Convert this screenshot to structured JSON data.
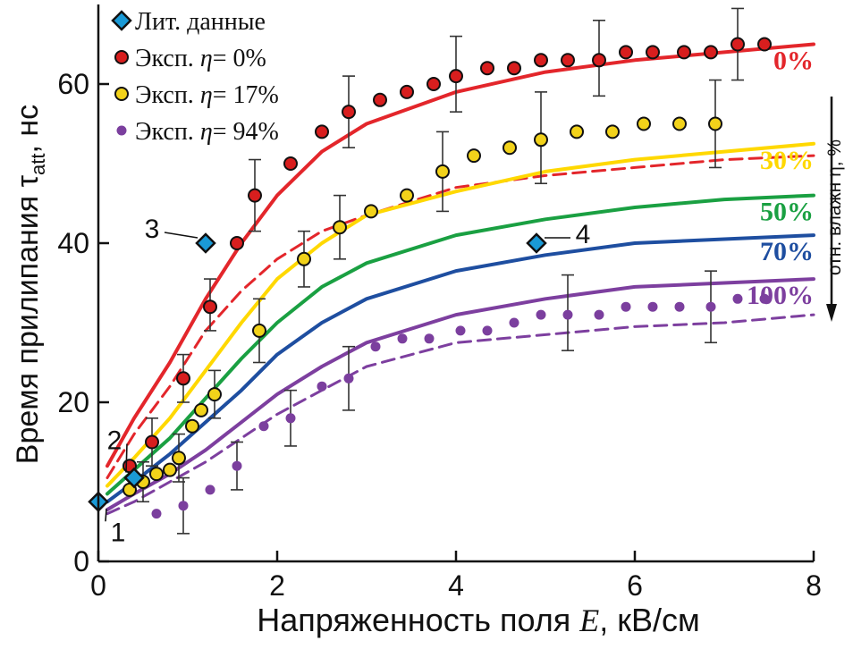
{
  "chart_data": {
    "type": "line",
    "xlabel_prefix": "Напряженность поля ",
    "xlabel_var": "E",
    "xlabel_suffix": ", кВ/см",
    "ylabel_prefix": "Время прилипания τ",
    "ylabel_sub": "att",
    "ylabel_suffix": ", нс",
    "xlim": [
      0,
      8
    ],
    "ylim": [
      0,
      70
    ],
    "x_ticks": [
      0,
      2,
      4,
      6,
      8
    ],
    "x_tick_labels": [
      "0",
      "2",
      "4",
      "6",
      "8"
    ],
    "y_ticks": [
      0,
      20,
      40,
      60
    ],
    "y_tick_labels": [
      "0",
      "20",
      "40",
      "60"
    ],
    "right_axis_label": "отн. влажн η, %",
    "legend": [
      {
        "text_prefix": "Лит. данные",
        "var": "",
        "text_suffix": "",
        "marker": "diamond",
        "color": "#1a9ad6"
      },
      {
        "text_prefix": "Эксп. ",
        "var": "η",
        "text_suffix": "= 0%",
        "marker": "circle",
        "color": "#d81e1e"
      },
      {
        "text_prefix": "Эксп. ",
        "var": "η",
        "text_suffix": "= 17%",
        "marker": "circle",
        "color": "#f2d21a"
      },
      {
        "text_prefix": "Эксп. ",
        "var": "η",
        "text_suffix": "= 94%",
        "marker": "circle-small",
        "color": "#7b3f9e"
      }
    ],
    "curves": [
      {
        "label": "0%",
        "color": "#e3262b",
        "style": "solid",
        "x": [
          0.1,
          0.4,
          0.8,
          1.2,
          1.6,
          2.0,
          2.5,
          3.0,
          4.0,
          5.0,
          6.0,
          7.0,
          8.0
        ],
        "y": [
          12,
          18,
          25,
          33,
          40,
          46,
          51.5,
          55,
          59,
          61.5,
          63,
          64,
          65
        ]
      },
      {
        "label": "",
        "color": "#e3262b",
        "style": "dashed",
        "x": [
          0.1,
          0.4,
          0.8,
          1.2,
          1.6,
          2.0,
          2.5,
          3.0,
          4.0,
          5.0,
          6.0,
          7.0,
          8.0
        ],
        "y": [
          10.5,
          16,
          22,
          29,
          34,
          38,
          41.5,
          43.5,
          47,
          48.5,
          49.5,
          50.5,
          51
        ]
      },
      {
        "label": "30%",
        "color": "#ffd800",
        "style": "solid",
        "x": [
          0.1,
          0.4,
          0.8,
          1.2,
          1.6,
          2.0,
          2.5,
          3.0,
          4.0,
          5.0,
          6.0,
          7.0,
          8.0
        ],
        "y": [
          9.5,
          13,
          18,
          24,
          30,
          35.5,
          40,
          43.5,
          46.5,
          49,
          50.5,
          51.5,
          52.5
        ]
      },
      {
        "label": "50%",
        "color": "#1aa042",
        "style": "solid",
        "x": [
          0.1,
          0.4,
          0.8,
          1.2,
          1.6,
          2.0,
          2.5,
          3.0,
          4.0,
          5.0,
          6.0,
          7.0,
          8.0
        ],
        "y": [
          8.5,
          11.5,
          15.5,
          20.5,
          25.5,
          30,
          34.5,
          37.5,
          41,
          43,
          44.5,
          45.5,
          46
        ]
      },
      {
        "label": "70%",
        "color": "#1e4ea0",
        "style": "solid",
        "x": [
          0.1,
          0.4,
          0.8,
          1.2,
          1.6,
          2.0,
          2.5,
          3.0,
          4.0,
          5.0,
          6.0,
          7.0,
          8.0
        ],
        "y": [
          7.5,
          10,
          13.5,
          17.5,
          21.5,
          26,
          30,
          33,
          36.5,
          38.5,
          40,
          40.5,
          41
        ]
      },
      {
        "label": "100%",
        "color": "#7d3f9f",
        "style": "solid",
        "x": [
          0.1,
          0.4,
          0.8,
          1.2,
          1.6,
          2.0,
          2.5,
          3.0,
          4.0,
          5.0,
          6.0,
          7.0,
          8.0
        ],
        "y": [
          6.5,
          8.5,
          11,
          14,
          17.5,
          21,
          24.5,
          27.5,
          31,
          33,
          34.5,
          35,
          35.5
        ]
      },
      {
        "label": "",
        "color": "#7d3f9f",
        "style": "dashed",
        "x": [
          0.1,
          0.4,
          0.8,
          1.2,
          1.6,
          2.0,
          2.5,
          3.0,
          4.0,
          5.0,
          6.0,
          7.0,
          8.0
        ],
        "y": [
          6,
          7.5,
          10,
          12.5,
          15.5,
          18.5,
          21.5,
          24.5,
          27.5,
          28.5,
          29.5,
          30,
          31
        ]
      }
    ],
    "series": [
      {
        "name": "Эксп. η= 0%",
        "color": "#d81e1e",
        "marker": "circle",
        "r": 7,
        "x": [
          0.35,
          0.6,
          0.95,
          1.25,
          1.55,
          1.75,
          2.15,
          2.5,
          2.8,
          3.15,
          3.45,
          3.75,
          4.0,
          4.35,
          4.65,
          4.95,
          5.25,
          5.6,
          5.9,
          6.2,
          6.55,
          6.85,
          7.15,
          7.45
        ],
        "y": [
          12,
          15,
          23,
          32,
          40,
          46,
          50,
          54,
          56.5,
          58,
          59,
          60,
          61,
          62,
          62,
          63,
          63,
          63,
          64,
          64,
          64,
          64,
          65,
          65
        ],
        "errorbars": [
          {
            "x": 0.6,
            "lo": 12,
            "hi": 18
          },
          {
            "x": 0.95,
            "lo": 20,
            "hi": 26
          },
          {
            "x": 1.25,
            "lo": 29,
            "hi": 35.5
          },
          {
            "x": 1.75,
            "lo": 41.5,
            "hi": 50.5
          },
          {
            "x": 2.8,
            "lo": 52,
            "hi": 61
          },
          {
            "x": 4.0,
            "lo": 56.5,
            "hi": 66
          },
          {
            "x": 5.6,
            "lo": 58.5,
            "hi": 68
          },
          {
            "x": 7.15,
            "lo": 60.5,
            "hi": 69.5
          }
        ]
      },
      {
        "name": "Эксп. η= 17%",
        "color": "#f2d21a",
        "marker": "circle",
        "r": 7,
        "x": [
          0.35,
          0.5,
          0.65,
          0.8,
          0.9,
          1.05,
          1.15,
          1.3,
          1.8,
          2.3,
          2.7,
          3.05,
          3.45,
          3.85,
          4.2,
          4.6,
          4.95,
          5.35,
          5.75,
          6.1,
          6.5,
          6.9
        ],
        "y": [
          9,
          10,
          11,
          11.5,
          13,
          17,
          19,
          21,
          29,
          38,
          42,
          44,
          46,
          49,
          51,
          52,
          53,
          54,
          54,
          55,
          55,
          55
        ],
        "errorbars": [
          {
            "x": 0.5,
            "lo": 7.5,
            "hi": 12.5
          },
          {
            "x": 0.9,
            "lo": 10,
            "hi": 16
          },
          {
            "x": 1.3,
            "lo": 18,
            "hi": 24
          },
          {
            "x": 1.8,
            "lo": 25,
            "hi": 33
          },
          {
            "x": 2.3,
            "lo": 34.5,
            "hi": 41.5
          },
          {
            "x": 2.7,
            "lo": 38,
            "hi": 46
          },
          {
            "x": 3.85,
            "lo": 44,
            "hi": 54
          },
          {
            "x": 4.95,
            "lo": 47.5,
            "hi": 59
          },
          {
            "x": 6.9,
            "lo": 49.5,
            "hi": 60.5
          }
        ]
      },
      {
        "name": "Эксп. η= 94%",
        "color": "#7b3f9e",
        "marker": "circle-small",
        "r": 5.5,
        "x": [
          0.65,
          0.95,
          1.25,
          1.55,
          1.85,
          2.15,
          2.5,
          2.8,
          3.1,
          3.4,
          3.7,
          4.05,
          4.35,
          4.65,
          4.95,
          5.25,
          5.6,
          5.9,
          6.2,
          6.5,
          6.85,
          7.15,
          7.45
        ],
        "y": [
          6,
          7,
          9,
          12,
          17,
          18,
          22,
          23,
          27,
          28,
          28,
          29,
          29,
          30,
          31,
          31,
          31,
          32,
          32,
          32,
          32,
          33,
          33
        ],
        "errorbars": [
          {
            "x": 0.95,
            "lo": 3.5,
            "hi": 10.5
          },
          {
            "x": 1.55,
            "lo": 9,
            "hi": 15
          },
          {
            "x": 2.15,
            "lo": 14.5,
            "hi": 21.5
          },
          {
            "x": 2.8,
            "lo": 19,
            "hi": 27
          },
          {
            "x": 5.25,
            "lo": 26.5,
            "hi": 36
          },
          {
            "x": 6.85,
            "lo": 27.5,
            "hi": 36.5
          }
        ]
      }
    ],
    "literature_points": [
      {
        "label": "1",
        "x": 0.0,
        "y": 7.5
      },
      {
        "label": "2",
        "x": 0.4,
        "y": 10.5
      },
      {
        "label": "3",
        "x": 1.2,
        "y": 40
      },
      {
        "label": "4",
        "x": 4.9,
        "y": 40
      }
    ]
  }
}
